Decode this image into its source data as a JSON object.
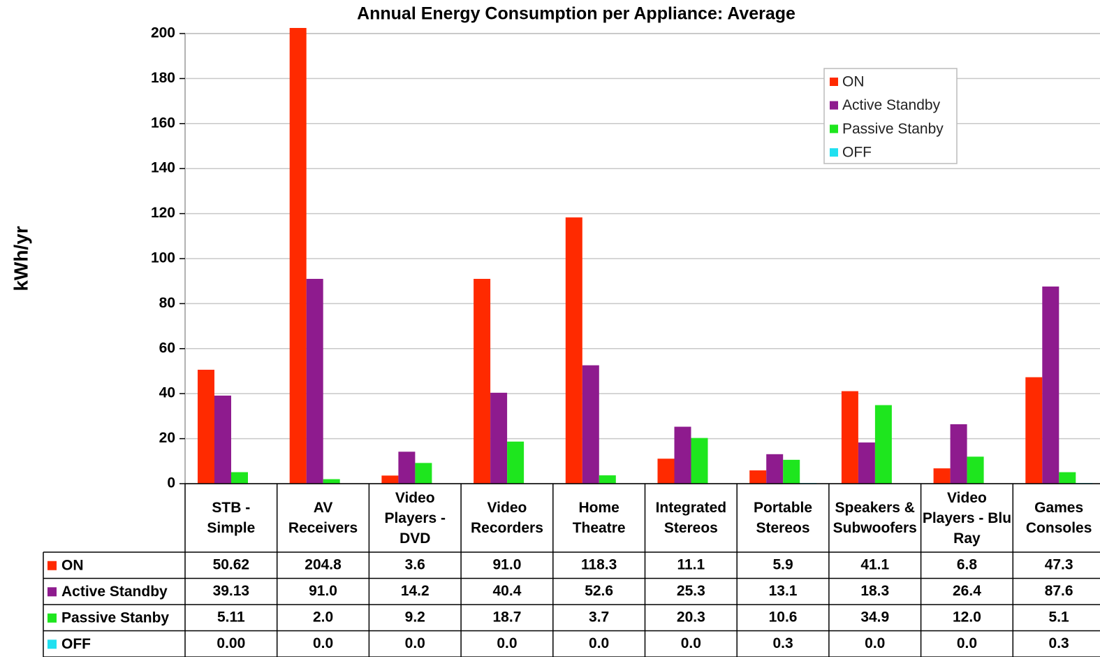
{
  "chart_data": {
    "type": "bar",
    "title": "Annual Energy Consumption per Appliance: Average",
    "y_label": "kWh/yr",
    "categories": [
      "STB - Simple",
      "AV Receivers",
      "Video Players - DVD",
      "Video Recorders",
      "Home Theatre",
      "Integrated Stereos",
      "Portable Stereos",
      "Speakers & Subwoofers",
      "Video Players - Blu Ray",
      "Games Consoles"
    ],
    "series": [
      {
        "name": "ON",
        "color": "#ff2a00",
        "values": [
          50.62,
          204.8,
          3.6,
          91.0,
          118.3,
          11.1,
          5.9,
          41.1,
          6.8,
          47.3
        ],
        "value_labels": [
          "50.62",
          "204.8",
          "3.6",
          "91.0",
          "118.3",
          "11.1",
          "5.9",
          "41.1",
          "6.8",
          "47.3"
        ]
      },
      {
        "name": "Active Standby",
        "color": "#8e1b8e",
        "values": [
          39.13,
          91.0,
          14.2,
          40.4,
          52.6,
          25.3,
          13.1,
          18.3,
          26.4,
          87.6
        ],
        "value_labels": [
          "39.13",
          "91.0",
          "14.2",
          "40.4",
          "52.6",
          "25.3",
          "13.1",
          "18.3",
          "26.4",
          "87.6"
        ]
      },
      {
        "name": "Passive Stanby",
        "color": "#1ee61e",
        "values": [
          5.11,
          2.0,
          9.2,
          18.7,
          3.7,
          20.3,
          10.6,
          34.9,
          12.0,
          5.1
        ],
        "value_labels": [
          "5.11",
          "2.0",
          "9.2",
          "18.7",
          "3.7",
          "20.3",
          "10.6",
          "34.9",
          "12.0",
          "5.1"
        ]
      },
      {
        "name": "OFF",
        "color": "#20e0f0",
        "values": [
          0.0,
          0.0,
          0.0,
          0.0,
          0.0,
          0.0,
          0.3,
          0.0,
          0.0,
          0.3
        ],
        "value_labels": [
          "0.00",
          "0.0",
          "0.0",
          "0.0",
          "0.0",
          "0.0",
          "0.3",
          "0.0",
          "0.0",
          "0.3"
        ]
      }
    ],
    "ylim": [
      0,
      200
    ],
    "yticks": [
      0,
      20,
      40,
      60,
      80,
      100,
      120,
      140,
      160,
      180,
      200
    ],
    "grid": true,
    "legend": "upper right"
  }
}
